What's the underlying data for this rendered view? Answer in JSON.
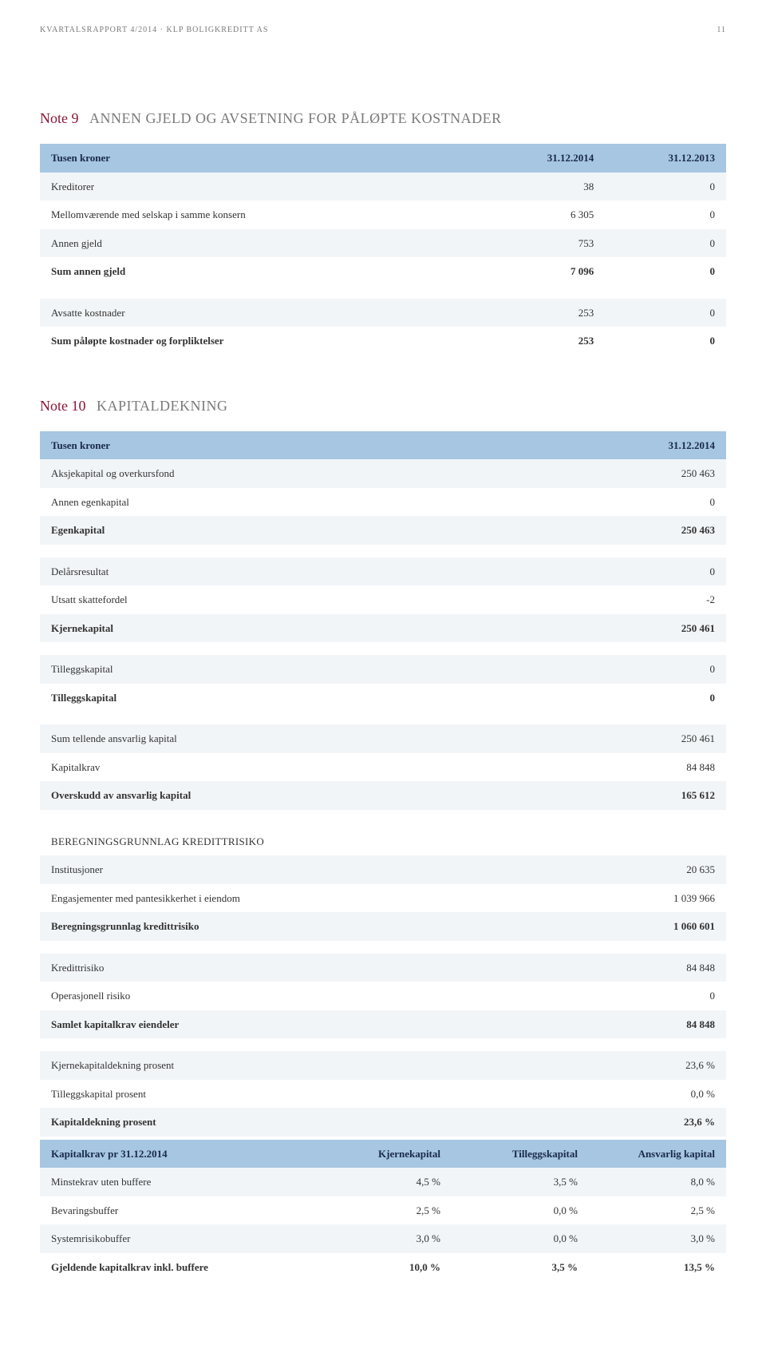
{
  "header": {
    "left": "KVARTALSRAPPORT 4/2014 · KLP BOLIGKREDITT AS",
    "page": "11"
  },
  "note9": {
    "num": "Note 9",
    "label": "ANNEN GJELD OG AVSETNING FOR PÅLØPTE KOSTNADER",
    "col0": "Tusen kroner",
    "col1": "31.12.2014",
    "col2": "31.12.2013",
    "rows": [
      {
        "label": "Kreditorer",
        "v1": "38",
        "v2": "0",
        "alt": true
      },
      {
        "label": "Mellomværende med selskap i samme konsern",
        "v1": "6 305",
        "v2": "0",
        "alt": false
      },
      {
        "label": "Annen gjeld",
        "v1": "753",
        "v2": "0",
        "alt": true
      },
      {
        "label": "Sum annen gjeld",
        "v1": "7 096",
        "v2": "0",
        "alt": false,
        "strong": true
      },
      {
        "spacer": true
      },
      {
        "label": "Avsatte kostnader",
        "v1": "253",
        "v2": "0",
        "alt": true
      },
      {
        "label": "Sum påløpte kostnader og forpliktelser",
        "v1": "253",
        "v2": "0",
        "alt": false,
        "strong": true
      }
    ]
  },
  "note10": {
    "num": "Note 10",
    "label": "KAPITALDEKNING",
    "col0": "Tusen kroner",
    "col1": "31.12.2014",
    "rows": [
      {
        "label": "Aksjekapital og overkursfond",
        "v1": "250 463",
        "alt": true
      },
      {
        "label": "Annen egenkapital",
        "v1": "0",
        "alt": false
      },
      {
        "label": "Egenkapital",
        "v1": "250 463",
        "alt": true,
        "strong": true
      },
      {
        "spacer": true
      },
      {
        "label": "Delårsresultat",
        "v1": "0",
        "alt": true
      },
      {
        "label": "Utsatt skattefordel",
        "v1": "-2",
        "alt": false
      },
      {
        "label": "Kjernekapital",
        "v1": "250 461",
        "alt": true,
        "strong": true
      },
      {
        "spacer": true
      },
      {
        "label": "Tilleggskapital",
        "v1": "0",
        "alt": true
      },
      {
        "label": "Tilleggskapital",
        "v1": "0",
        "alt": false,
        "strong": true
      },
      {
        "spacer": true
      },
      {
        "label": "Sum tellende ansvarlig kapital",
        "v1": "250 461",
        "alt": true
      },
      {
        "label": "Kapitalkrav",
        "v1": "84 848",
        "alt": false
      },
      {
        "label": "Overskudd av ansvarlig kapital",
        "v1": "165 612",
        "alt": true,
        "strong": true
      },
      {
        "spacer": true
      },
      {
        "section": "BEREGNINGSGRUNNLAG KREDITTRISIKO"
      },
      {
        "label": "Institusjoner",
        "v1": "20 635",
        "alt": true
      },
      {
        "label": "Engasjementer med pantesikkerhet i eiendom",
        "v1": "1 039 966",
        "alt": false
      },
      {
        "label": "Beregningsgrunnlag kredittrisiko",
        "v1": "1 060 601",
        "alt": true,
        "strong": true
      },
      {
        "spacer": true
      },
      {
        "label": "Kredittrisiko",
        "v1": "84 848",
        "alt": true
      },
      {
        "label": "Operasjonell risiko",
        "v1": "0",
        "alt": false
      },
      {
        "label": "Samlet kapitalkrav eiendeler",
        "v1": "84 848",
        "alt": true,
        "strong": true
      },
      {
        "spacer": true
      },
      {
        "label": "Kjernekapitaldekning prosent",
        "v1": "23,6 %",
        "alt": true
      },
      {
        "label": "Tilleggskapital prosent",
        "v1": "0,0 %",
        "alt": false
      },
      {
        "label": "Kapitaldekning prosent",
        "v1": "23,6 %",
        "alt": true,
        "strong": true
      }
    ],
    "capreq": {
      "col0": "Kapitalkrav pr 31.12.2014",
      "col1": "Kjernekapital",
      "col2": "Tilleggskapital",
      "col3": "Ansvarlig kapital",
      "rows": [
        {
          "label": "Minstekrav uten buffere",
          "v1": "4,5 %",
          "v2": "3,5 %",
          "v3": "8,0 %",
          "alt": true
        },
        {
          "label": "Bevaringsbuffer",
          "v1": "2,5 %",
          "v2": "0,0 %",
          "v3": "2,5 %",
          "alt": false
        },
        {
          "label": "Systemrisikobuffer",
          "v1": "3,0 %",
          "v2": "0,0 %",
          "v3": "3,0 %",
          "alt": true
        },
        {
          "label": "Gjeldende kapitalkrav inkl. buffere",
          "v1": "10,0 %",
          "v2": "3,5 %",
          "v3": "13,5 %",
          "alt": false,
          "strong": true
        }
      ]
    }
  },
  "colors": {
    "accent": "#8b1538",
    "muted": "#7a7a7a",
    "thead_bg": "#a6c6e2",
    "alt_bg": "#f2f5f8"
  }
}
